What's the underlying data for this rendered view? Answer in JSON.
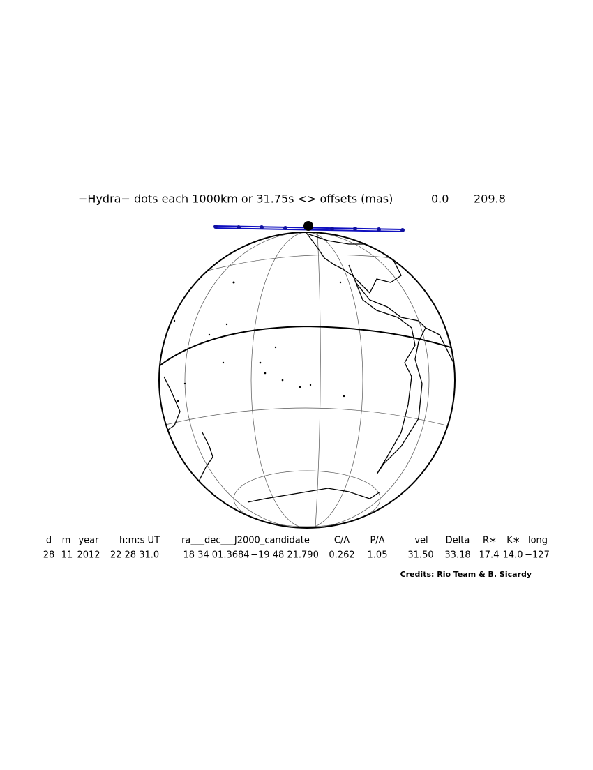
{
  "title": "−Hydra− dots each 1000km or 31.75s <> offsets (mas)",
  "offsets": [
    "0.0",
    "209.8"
  ],
  "table": {
    "headers": [
      "d",
      "m",
      "year",
      "h:m:s UT",
      "ra___dec___J2000_candidate",
      "C/A",
      "P/A",
      "vel",
      "Delta",
      "R∗",
      "K∗",
      "long"
    ],
    "values": [
      "28",
      "11",
      "2012",
      "22 28 31.0",
      "18 34 01.3684",
      "−19 48 21.790",
      "0.262",
      "1.05",
      "31.50",
      "33.18",
      "17.4",
      "14.0",
      "−127"
    ]
  },
  "credits": "Credits: Rio Team & B. Sicardy"
}
